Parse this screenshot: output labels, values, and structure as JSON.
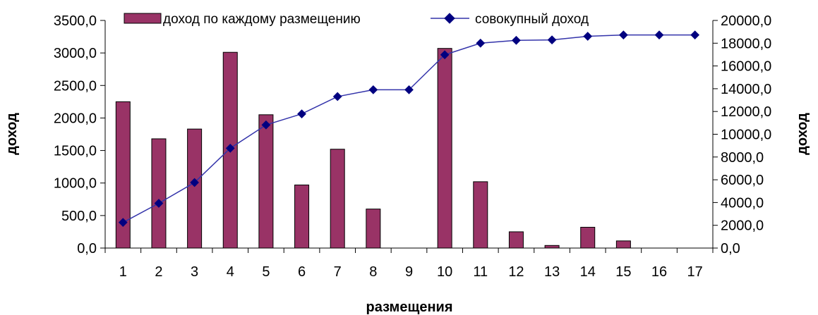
{
  "chart_data": {
    "type": "bar",
    "categories": [
      "1",
      "2",
      "3",
      "4",
      "5",
      "6",
      "7",
      "8",
      "9",
      "10",
      "11",
      "12",
      "13",
      "14",
      "15",
      "16",
      "17"
    ],
    "series": [
      {
        "name": "доход по каждому размещению",
        "type": "bar",
        "axis": "left",
        "color": "#993366",
        "values": [
          2250,
          1680,
          1830,
          3010,
          2050,
          970,
          1520,
          600,
          0,
          3070,
          1020,
          250,
          40,
          320,
          110,
          0,
          0
        ]
      },
      {
        "name": "совокупный доход",
        "type": "line",
        "axis": "right",
        "color": "#000080",
        "line_color": "#3333aa",
        "values": [
          2250,
          3930,
          5760,
          8770,
          10820,
          11790,
          13310,
          13910,
          13910,
          16980,
          18000,
          18250,
          18290,
          18610,
          18720,
          18720,
          18720
        ]
      }
    ],
    "xlabel": "размещения",
    "ylabel": "доход",
    "y2label": "доход",
    "ylim": [
      0,
      3500
    ],
    "y2lim": [
      0,
      20000
    ],
    "yticks": [
      "0,0",
      "500,0",
      "1000,0",
      "1500,0",
      "2000,0",
      "2500,0",
      "3000,0",
      "3500,0"
    ],
    "y2ticks": [
      "0,0",
      "2000,0",
      "4000,0",
      "6000,0",
      "8000,0",
      "10000,0",
      "12000,0",
      "14000,0",
      "16000,0",
      "18000,0",
      "20000,0"
    ],
    "grid": false,
    "legend": "top"
  }
}
